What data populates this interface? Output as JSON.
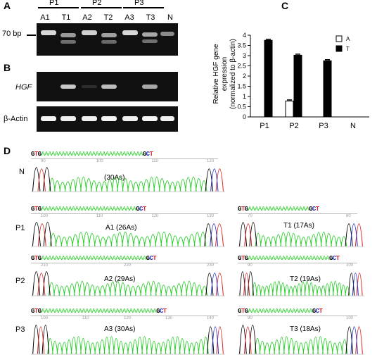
{
  "panels": {
    "A": "A",
    "B": "B",
    "C": "C",
    "D": "D"
  },
  "gelA": {
    "groups": [
      "P1",
      "P2",
      "P3"
    ],
    "lanes": [
      "A1",
      "T1",
      "A2",
      "T2",
      "A3",
      "T3",
      "N"
    ],
    "marker": "70 bp"
  },
  "gelB": {
    "gene_label": "HGF",
    "control_label": "β-Actin"
  },
  "chart_data": {
    "type": "bar",
    "categories": [
      "P1",
      "P2",
      "P3",
      "N"
    ],
    "series": [
      {
        "name": "A",
        "values": [
          0,
          0.78,
          0,
          0
        ]
      },
      {
        "name": "T",
        "values": [
          3.75,
          3.02,
          2.75,
          0
        ]
      }
    ],
    "ylabel_line1": "Relative HGF gene",
    "ylabel_line2": "expression",
    "ylabel_line3": "(normalized to β-actin)",
    "ylim": [
      0,
      4
    ],
    "yticks": [
      "0",
      "0.5",
      "1",
      "1.5",
      "2",
      "2.5",
      "3",
      "3.5",
      "4"
    ],
    "legend_position": "top-right",
    "colors": {
      "A": "#ffffff",
      "T": "#000000"
    }
  },
  "traces": {
    "N": {
      "row": "N",
      "label": "(30As)",
      "seq": "GTGAAAAAAAAAAAAAAAAAAAAAAAAAAAAAAGCT",
      "ticks": [
        "90",
        "100",
        "110",
        "120"
      ]
    },
    "A1": {
      "row": "P1",
      "label": "A1 (26As)",
      "seq": "GTGAAAAAAAAAAAAAAAAAAAAAAAAAAAAGCT",
      "ticks": [
        "100",
        "110",
        "120",
        "130"
      ]
    },
    "T1": {
      "label": "T1 (17As)",
      "seq": "GTGAAAAAAAAAAAAAAAAAAGCT",
      "ticks": [
        "70",
        "80"
      ]
    },
    "A2": {
      "row": "P2",
      "label": "A2 (29As)",
      "seq": "GTGAAAAAAAAAAAAAAAAAAAAAAAAAAAAAAAGCT",
      "ticks": [
        "210",
        "220",
        "230"
      ]
    },
    "T2": {
      "label": "T2 (19As)",
      "seq": "GTGAAAAAAAAAAAAAAAAAAAAAAAAGCT",
      "ticks": [
        "90",
        "100"
      ]
    },
    "A3": {
      "row": "P3",
      "label": "A3 (30As)",
      "seq": "GTGAAAAAAAAAAAAAAAAAAAAAAAAAAAAAAAAAAGCT",
      "ticks": [
        "100",
        "110",
        "120",
        "130",
        "140"
      ]
    },
    "T3": {
      "label": "T3 (18As)",
      "seq": "GTGAAAAAAAAAAAAAAAAAAAGCT",
      "ticks": [
        "90",
        "100"
      ]
    }
  }
}
